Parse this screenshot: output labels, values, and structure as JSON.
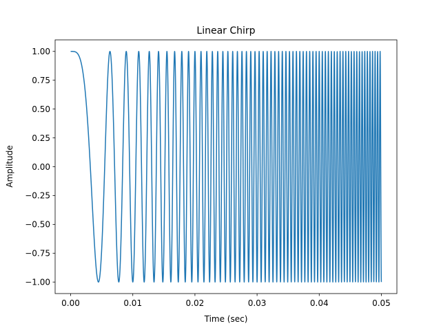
{
  "chart_data": {
    "type": "line",
    "title": "Linear Chirp",
    "xlabel": "Time (sec)",
    "ylabel": "Amplitude",
    "xlim": [
      -0.0025,
      0.0525
    ],
    "ylim": [
      -1.1,
      1.1
    ],
    "x_ticks": [
      "0.00",
      "0.01",
      "0.02",
      "0.03",
      "0.04",
      "0.05"
    ],
    "x_tick_values": [
      0.0,
      0.01,
      0.02,
      0.03,
      0.04,
      0.05
    ],
    "y_ticks": [
      "−1.00",
      "−0.75",
      "−0.50",
      "−0.25",
      "0.00",
      "0.25",
      "0.50",
      "0.75",
      "1.00"
    ],
    "y_tick_values": [
      -1.0,
      -0.75,
      -0.5,
      -0.25,
      0.0,
      0.25,
      0.5,
      0.75,
      1.0
    ],
    "grid": false,
    "legend": "none",
    "series": [
      {
        "function": "cos(2*pi*(f0*t + k*t^2/2))",
        "f0": 0,
        "k": 50000,
        "t_start": 0.0,
        "t_end": 0.05,
        "color": "#1f77b4"
      }
    ]
  }
}
